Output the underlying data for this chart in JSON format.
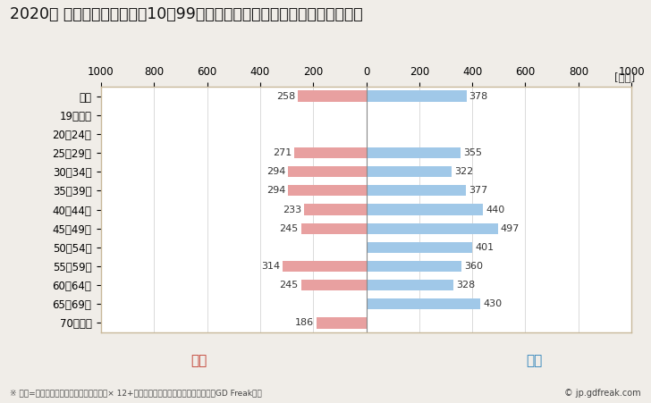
{
  "title": "2020年 民間企業（従業者数10～99人）フルタイム労働者の男女別平均年収",
  "unit_label": "[万円]",
  "categories": [
    "全体",
    "19歳以下",
    "20～24歳",
    "25～29歳",
    "30～34歳",
    "35～39歳",
    "40～44歳",
    "45～49歳",
    "50～54歳",
    "55～59歳",
    "60～64歳",
    "65～69歳",
    "70歳以上"
  ],
  "female_values": [
    258,
    0,
    0,
    271,
    294,
    294,
    233,
    245,
    0,
    314,
    245,
    0,
    186
  ],
  "male_values": [
    378,
    0,
    0,
    355,
    322,
    377,
    440,
    497,
    401,
    360,
    328,
    430,
    0
  ],
  "female_color": "#e8a0a0",
  "male_color": "#a0c8e8",
  "female_label": "女性",
  "male_label": "男性",
  "female_label_color": "#c0392b",
  "male_label_color": "#2980b9",
  "xlim": [
    -1000,
    1000
  ],
  "xticks": [
    -1000,
    -800,
    -600,
    -400,
    -200,
    0,
    200,
    400,
    600,
    800,
    1000
  ],
  "xticklabels": [
    "1000",
    "800",
    "600",
    "400",
    "200",
    "0",
    "200",
    "400",
    "600",
    "800",
    "1000"
  ],
  "background_color": "#f0ede8",
  "plot_bg_color": "#ffffff",
  "border_color": "#c8b89a",
  "footnote": "※ 年収=「きまって支給する現金給与額」× 12+「年間賞与その他特別給与額」としてGD Freak推計",
  "copyright": "© jp.gdfreak.com",
  "title_fontsize": 12.5,
  "tick_fontsize": 8.5,
  "label_fontsize": 8.5,
  "legend_fontsize": 11,
  "value_fontsize": 8
}
